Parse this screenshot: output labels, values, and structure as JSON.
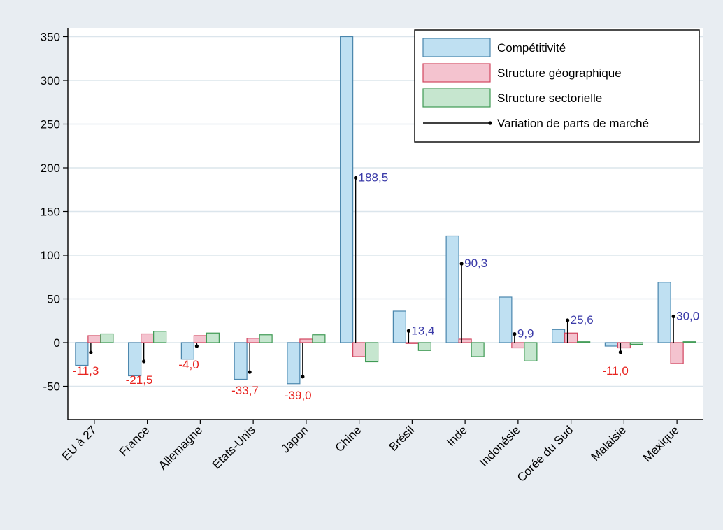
{
  "chart_data": {
    "type": "bar",
    "categories": [
      "EU à 27",
      "France",
      "Allemagne",
      "Etats-Unis",
      "Japon",
      "Chine",
      "Brésil",
      "Inde",
      "Indonésie",
      "Corée du Sud",
      "Malaisie",
      "Mexique"
    ],
    "series": [
      {
        "name": "Compétitivité",
        "color": "#bfe0f2",
        "stroke": "#4a86ad",
        "values": [
          -26,
          -38,
          -19,
          -42,
          -47,
          350,
          36,
          122,
          52,
          15,
          -4,
          69
        ]
      },
      {
        "name": "Structure géographique",
        "color": "#f4c3cf",
        "stroke": "#d1455f",
        "values": [
          8,
          10,
          8,
          5,
          4,
          -16,
          -1,
          4,
          -6,
          11,
          -6,
          -24
        ]
      },
      {
        "name": "Structure sectorielle",
        "color": "#c6e6cf",
        "stroke": "#3f9a54",
        "values": [
          10,
          13,
          11,
          9,
          9,
          -22,
          -9,
          -16,
          -21,
          1,
          -2,
          1
        ]
      }
    ],
    "variation": {
      "name": "Variation de parts de marché",
      "values": [
        -11.3,
        -21.5,
        -4.0,
        -33.7,
        -39.0,
        188.5,
        13.4,
        90.3,
        9.9,
        25.6,
        -11.0,
        30.0
      ],
      "labels": [
        "-11,3",
        "-21,5",
        "-4,0",
        "-33,7",
        "-39,0",
        "188,5",
        "13,4",
        "90,3",
        "9,9",
        "25,6",
        "-11,0",
        "30,0"
      ],
      "positive_color": "#3a3aa8",
      "negative_color": "#e8231f"
    },
    "yticks": [
      -50,
      0,
      50,
      100,
      150,
      200,
      250,
      300,
      350
    ],
    "ylim": [
      -88,
      360
    ],
    "grid": true,
    "legend_position": "top-right",
    "xlabel": "",
    "ylabel": ""
  }
}
